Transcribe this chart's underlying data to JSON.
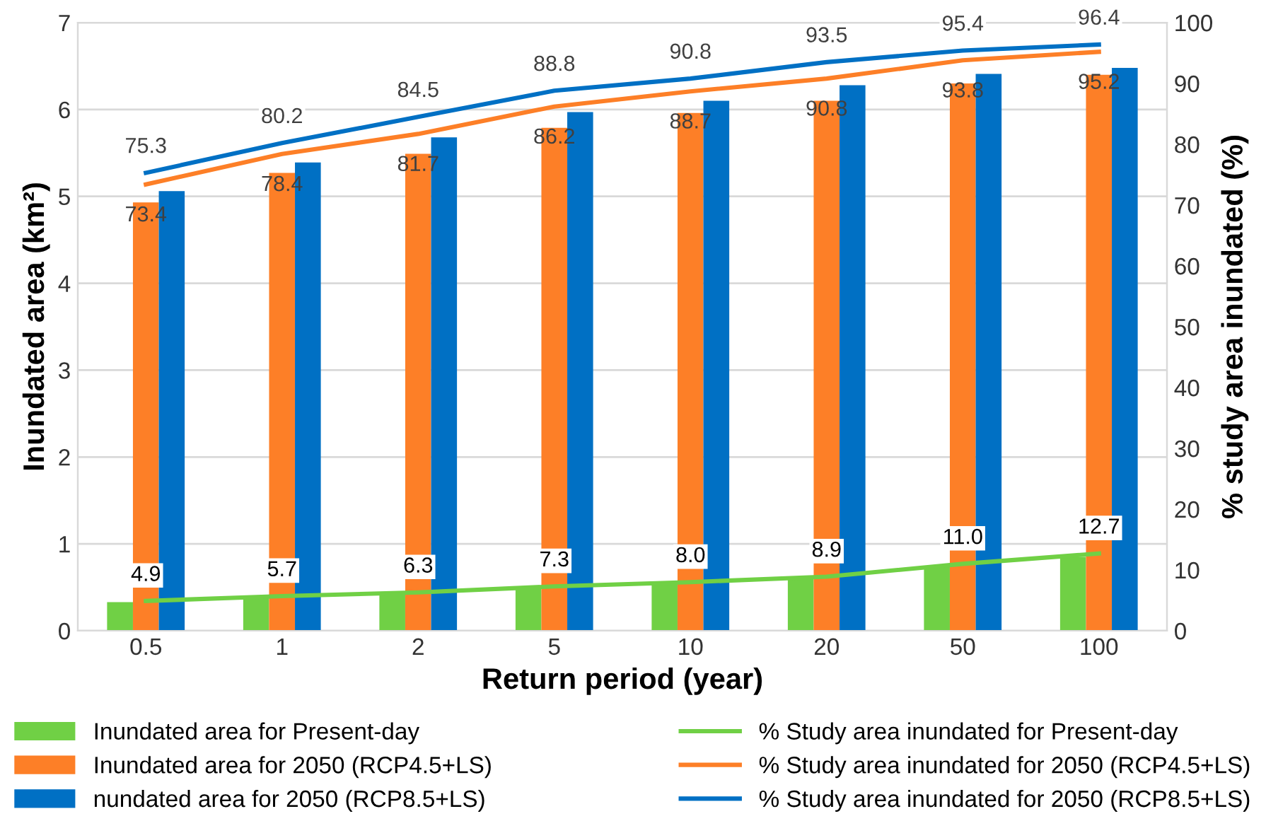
{
  "chart_data": {
    "type": "bar",
    "xlabel": "Return period (year)",
    "ylabel": "Inundated area (km²)",
    "y2label": "% study area inundated (%)",
    "categories": [
      "0.5",
      "1",
      "2",
      "5",
      "10",
      "20",
      "50",
      "100"
    ],
    "ylim": [
      0,
      7
    ],
    "yticks": [
      0,
      1,
      2,
      3,
      4,
      5,
      6,
      7
    ],
    "y2lim": [
      0,
      100
    ],
    "y2ticks": [
      0,
      10,
      20,
      30,
      40,
      50,
      60,
      70,
      80,
      90,
      100
    ],
    "grid": "y",
    "legend": "bottom",
    "series": [
      {
        "name": "Inundated area for Present-day",
        "color": "#70d045",
        "values": [
          0.33,
          0.38,
          0.42,
          0.49,
          0.54,
          0.6,
          0.74,
          0.85
        ]
      },
      {
        "name": "Inundated area for 2050 (RCP4.5+LS)",
        "color": "#fd7f27",
        "values": [
          4.93,
          5.27,
          5.49,
          5.79,
          5.96,
          6.1,
          6.3,
          6.4
        ]
      },
      {
        "name": "nundated area for 2050 (RCP8.5+LS)",
        "color": "#0070c4",
        "values": [
          5.06,
          5.39,
          5.68,
          5.97,
          6.1,
          6.28,
          6.41,
          6.48
        ]
      },
      {
        "name": "% Study area inundated for Present-day",
        "type": "line",
        "axis": "y2",
        "color": "#70d045",
        "values": [
          4.9,
          5.7,
          6.3,
          7.3,
          8.0,
          8.9,
          11.0,
          12.7
        ],
        "value_labels": [
          "4.9",
          "5.7",
          "6.3",
          "7.3",
          "8.0",
          "8.9",
          "11.0",
          "12.7"
        ]
      },
      {
        "name": "% Study area inundated for 2050 (RCP4.5+LS)",
        "type": "line",
        "axis": "y2",
        "color": "#fd7f27",
        "values": [
          73.4,
          78.4,
          81.7,
          86.2,
          88.7,
          90.8,
          93.8,
          95.2
        ],
        "value_labels": [
          "73.4",
          "78.4",
          "81.7",
          "86.2",
          "88.7",
          "90.8",
          "93.8",
          "95.2"
        ]
      },
      {
        "name": "% Study area inundated for 2050 (RCP8.5+LS)",
        "type": "line",
        "axis": "y2",
        "color": "#0070c4",
        "values": [
          75.3,
          80.2,
          84.5,
          88.8,
          90.8,
          93.5,
          95.4,
          96.4
        ],
        "value_labels": [
          "75.3",
          "80.2",
          "84.5",
          "88.8",
          "90.8",
          "93.5",
          "95.4",
          "96.4"
        ]
      }
    ]
  }
}
